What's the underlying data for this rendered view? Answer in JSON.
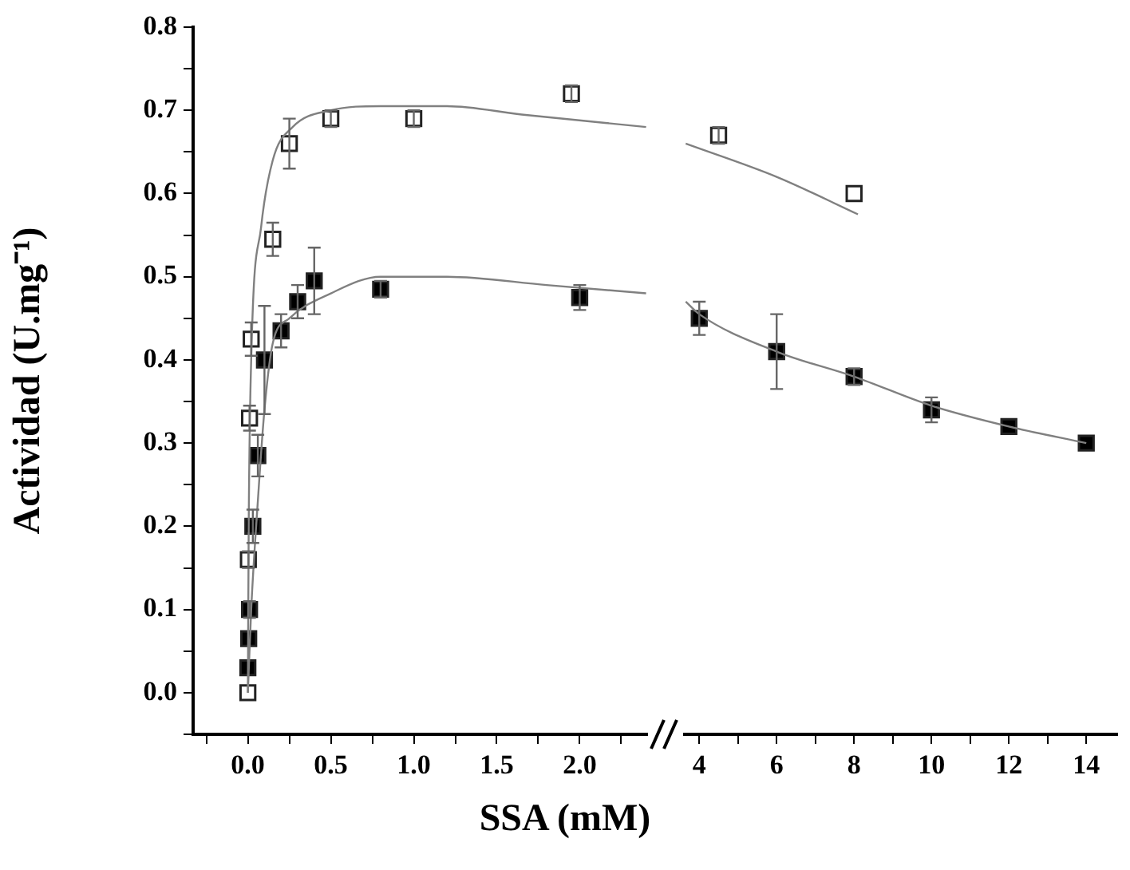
{
  "chart_data": [
    {
      "type": "scatter",
      "ylabel": "Actividad (U.mg⁻¹)",
      "xlabel": "SSA (mM)",
      "xlim": [
        -0.33,
        2.45
      ],
      "ylim": [
        -0.05,
        0.8
      ],
      "marker": "square",
      "xticks": [
        {
          "value": -0.25,
          "label": null
        },
        {
          "value": 0,
          "label": "0.0"
        },
        {
          "value": 0.25,
          "label": null
        },
        {
          "value": 0.5,
          "label": "0.5"
        },
        {
          "value": 0.75,
          "label": null
        },
        {
          "value": 1,
          "label": "1.0"
        },
        {
          "value": 1.25,
          "label": null
        },
        {
          "value": 1.5,
          "label": "1.5"
        },
        {
          "value": 1.75,
          "label": null
        },
        {
          "value": 2,
          "label": "2.0"
        },
        {
          "value": 2.25,
          "label": null
        }
      ],
      "yticks": [
        {
          "value": -0.05,
          "label": null
        },
        {
          "value": 0,
          "label": "0.0"
        },
        {
          "value": 0.05,
          "label": null
        },
        {
          "value": 0.1,
          "label": "0.1"
        },
        {
          "value": 0.15,
          "label": null
        },
        {
          "value": 0.2,
          "label": "0.2"
        },
        {
          "value": 0.25,
          "label": null
        },
        {
          "value": 0.3,
          "label": "0.3"
        },
        {
          "value": 0.35,
          "label": null
        },
        {
          "value": 0.4,
          "label": "0.4"
        },
        {
          "value": 0.45,
          "label": null
        },
        {
          "value": 0.5,
          "label": "0.5"
        },
        {
          "value": 0.55,
          "label": null
        },
        {
          "value": 0.6,
          "label": "0.6"
        },
        {
          "value": 0.65,
          "label": null
        },
        {
          "value": 0.7,
          "label": "0.7"
        },
        {
          "value": 0.75,
          "label": null
        },
        {
          "value": 0.8,
          "label": "0.8"
        }
      ],
      "series": [
        {
          "type": "line",
          "color": "#808080",
          "marker": "none",
          "x": [
            0,
            0.005,
            0.02,
            0.08,
            0.15,
            0.27,
            0.5,
            0.8,
            1.2,
            1.65,
            2.4
          ],
          "values": [
            0,
            0.2,
            0.4,
            0.56,
            0.64,
            0.68,
            0.7,
            0.705,
            0.705,
            0.695,
            0.68
          ]
        },
        {
          "type": "line",
          "color": "#808080",
          "marker": "none",
          "x": [
            0,
            0.02,
            0.06,
            0.1,
            0.15,
            0.25,
            0.5,
            0.8,
            1.2,
            1.8,
            2.4
          ],
          "values": [
            0,
            0.1,
            0.23,
            0.34,
            0.42,
            0.45,
            0.48,
            0.5,
            0.5,
            0.49,
            0.48
          ]
        },
        {
          "color": "#ffffff",
          "x": [
            0,
            0.003,
            0.01,
            0.02,
            0.15,
            0.25,
            0.5,
            1,
            1.95
          ],
          "values": [
            0,
            0.16,
            0.33,
            0.425,
            0.545,
            0.66,
            0.69,
            0.69,
            0.72
          ],
          "errors": [
            null,
            0.01,
            0.015,
            0.02,
            0.02,
            0.03,
            0.01,
            0.01,
            0.01
          ]
        },
        {
          "color": "#000000",
          "x": [
            0,
            0.005,
            0.01,
            0.03,
            0.06,
            0.1,
            0.2,
            0.3,
            0.4,
            0.8,
            2
          ],
          "values": [
            0.03,
            0.065,
            0.1,
            0.2,
            0.285,
            0.4,
            0.435,
            0.47,
            0.495,
            0.485,
            0.475
          ],
          "errors": [
            null,
            null,
            0.01,
            0.02,
            0.025,
            0.065,
            0.02,
            0.02,
            0.04,
            0.01,
            0.015
          ]
        }
      ]
    },
    {
      "type": "scatter",
      "tick_labels": "x",
      "xlim": [
        3.5,
        14.8
      ],
      "ylim": [
        -0.05,
        0.8
      ],
      "marker": "square",
      "xticks": [
        4,
        {
          "value": 5,
          "label": null
        },
        6,
        {
          "value": 7,
          "label": null
        },
        8,
        {
          "value": 9,
          "label": null
        },
        10,
        {
          "value": 11,
          "label": null
        },
        12,
        {
          "value": 13,
          "label": null
        },
        14
      ],
      "series": [
        {
          "type": "line",
          "color": "#808080",
          "marker": "none",
          "x": [
            3.65,
            6,
            8.1
          ],
          "values": [
            0.66,
            0.62,
            0.575
          ]
        },
        {
          "type": "line",
          "color": "#808080",
          "marker": "none",
          "x": [
            3.65,
            4,
            6,
            8,
            10,
            12,
            14
          ],
          "values": [
            0.47,
            0.455,
            0.41,
            0.38,
            0.345,
            0.32,
            0.3
          ]
        },
        {
          "color": "#ffffff",
          "x": [
            4.5,
            8
          ],
          "values": [
            0.67,
            0.6
          ],
          "errors": [
            0.01,
            null
          ]
        },
        {
          "color": "#000000",
          "x": [
            4,
            6,
            8,
            10,
            12,
            14
          ],
          "values": [
            0.45,
            0.41,
            0.38,
            0.34,
            0.32,
            0.3
          ],
          "errors": [
            0.02,
            0.045,
            0.01,
            0.015,
            null,
            null
          ]
        }
      ]
    }
  ]
}
